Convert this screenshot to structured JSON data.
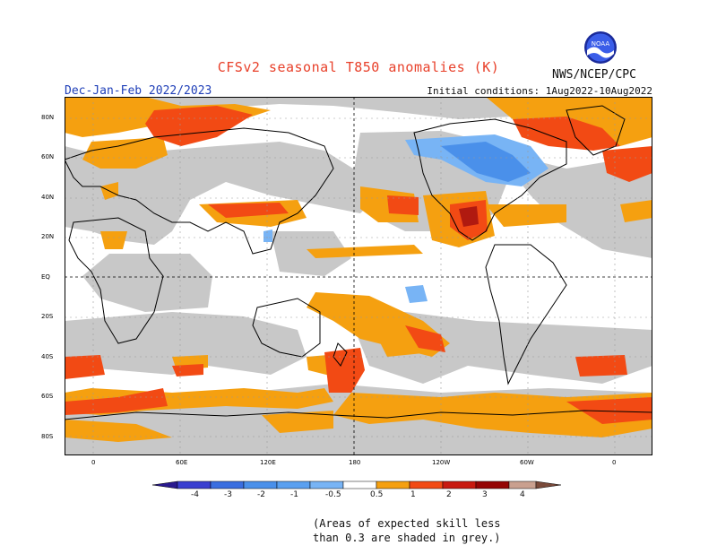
{
  "title": "CFSv2 seasonal T850 anomalies (K)",
  "season": "Dec-Jan-Feb 2022/2023",
  "initial_conditions": "Initial conditions: 1Aug2022-10Aug2022",
  "agency": "NWS/NCEP/CPC",
  "logo_text": "NOAA",
  "note_line1": "(Areas of expected skill less",
  "note_line2": "than 0.3 are shaded in grey.)",
  "lat_labels": [
    "80N",
    "60N",
    "40N",
    "20N",
    "EQ",
    "20S",
    "40S",
    "60S",
    "80S"
  ],
  "lon_labels": [
    "0",
    "60E",
    "120E",
    "180",
    "120W",
    "60W",
    "0"
  ],
  "colorbar": {
    "labels": [
      "-4",
      "-3",
      "-2",
      "-1",
      "-0.5",
      "0.5",
      "1",
      "2",
      "3",
      "4"
    ],
    "colors": [
      "#2a1a8f",
      "#3a3fd0",
      "#3a6ee0",
      "#4a90ea",
      "#78b4f5",
      "#ffffff",
      "#f5a010",
      "#f24a14",
      "#c81a10",
      "#950505",
      "#c9a08f",
      "#7a4a3a"
    ]
  },
  "legend_colors": {
    "grey": "#c8c8c8",
    "orange": "#f5a010",
    "red": "#f24a14",
    "darkred": "#b01a10",
    "lightblue": "#78b4f5",
    "blue": "#4a90ea"
  }
}
